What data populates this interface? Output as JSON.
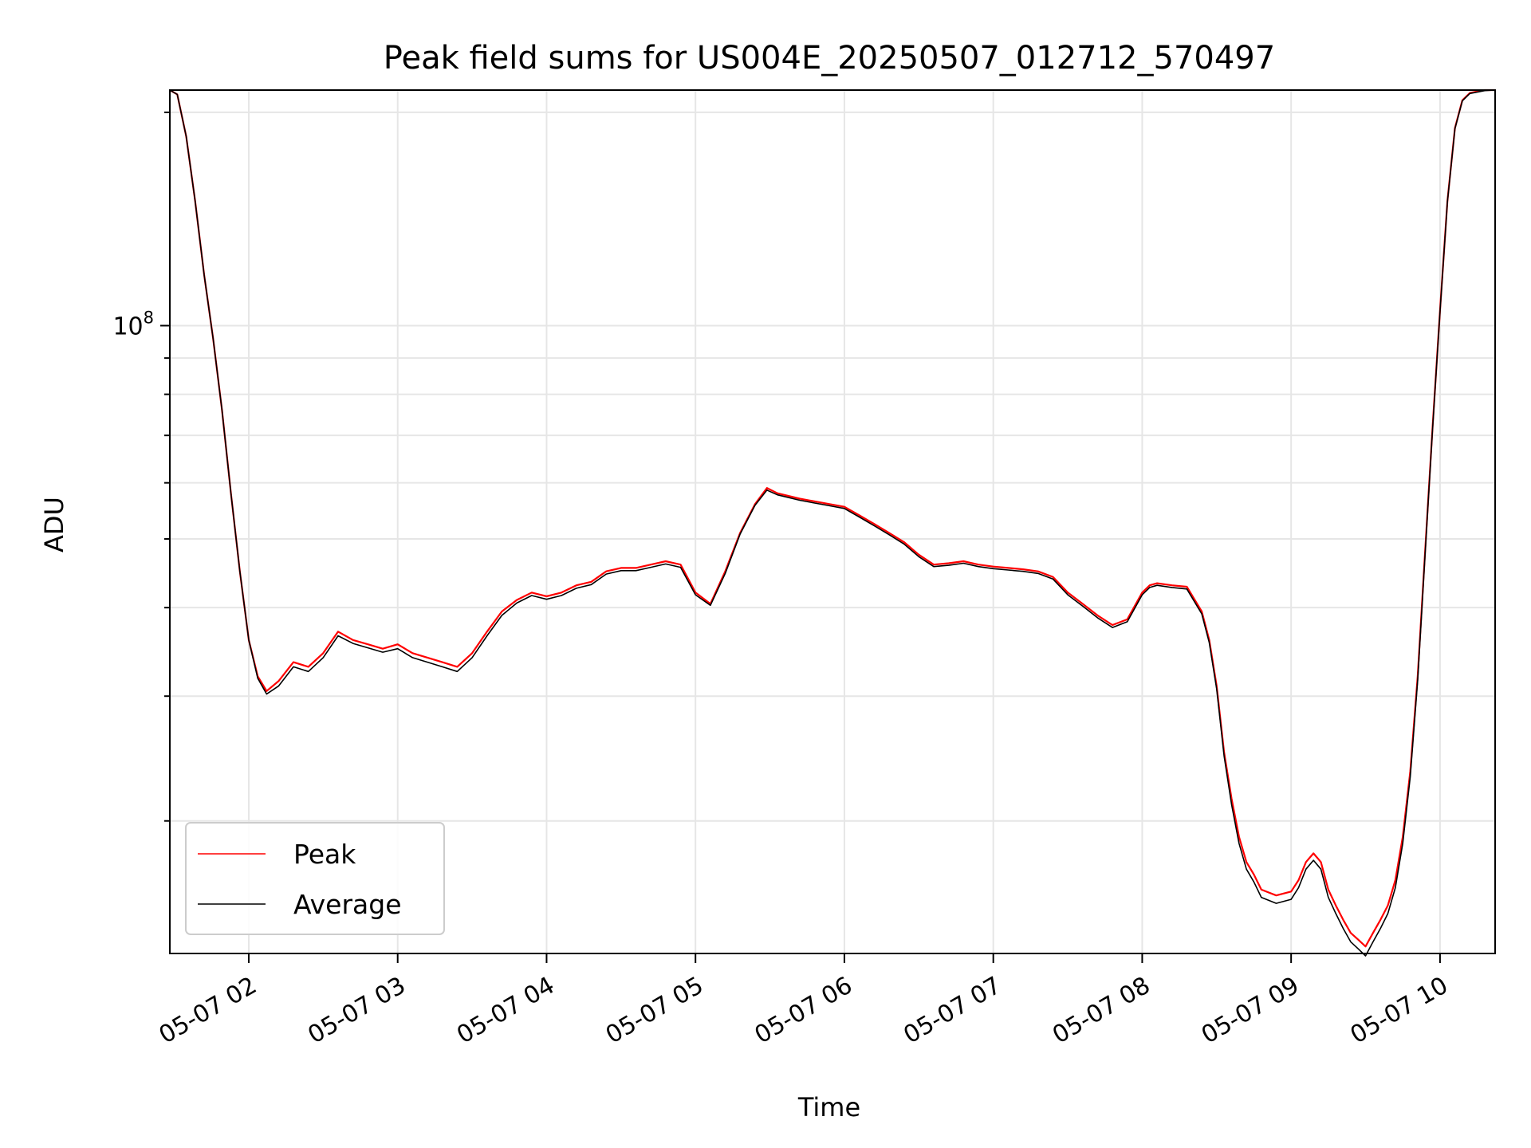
{
  "chart_data": {
    "type": "line",
    "title": "Peak field sums for US004E_20250507_012712_570497",
    "xlabel": "Time",
    "ylabel": "ADU",
    "y_scale": "log",
    "grid": true,
    "legend_position": "lower-left",
    "x_ticks": [
      "05-07 02",
      "05-07 03",
      "05-07 04",
      "05-07 05",
      "05-07 06",
      "05-07 07",
      "05-07 08",
      "05-07 09",
      "05-07 10"
    ],
    "y_major_tick": {
      "value": 100000000,
      "base": "10",
      "exponent": "8"
    },
    "x_range_hours": [
      1.47,
      10.37
    ],
    "y_range": [
      13000000,
      215000000
    ],
    "series": [
      {
        "name": "Peak",
        "color": "#ff0000",
        "x_hours": [
          1.47,
          1.52,
          1.58,
          1.64,
          1.7,
          1.76,
          1.82,
          1.88,
          1.94,
          2.0,
          2.06,
          2.12,
          2.2,
          2.3,
          2.4,
          2.5,
          2.6,
          2.7,
          2.8,
          2.9,
          3.0,
          3.1,
          3.2,
          3.3,
          3.4,
          3.5,
          3.6,
          3.7,
          3.8,
          3.9,
          4.0,
          4.1,
          4.2,
          4.3,
          4.4,
          4.5,
          4.6,
          4.7,
          4.8,
          4.9,
          5.0,
          5.1,
          5.2,
          5.3,
          5.4,
          5.48,
          5.55,
          5.7,
          5.9,
          6.0,
          6.1,
          6.2,
          6.3,
          6.4,
          6.5,
          6.6,
          6.7,
          6.8,
          6.9,
          7.0,
          7.1,
          7.2,
          7.3,
          7.4,
          7.5,
          7.6,
          7.7,
          7.8,
          7.9,
          8.0,
          8.05,
          8.1,
          8.2,
          8.3,
          8.4,
          8.45,
          8.5,
          8.55,
          8.6,
          8.65,
          8.7,
          8.75,
          8.8,
          8.9,
          9.0,
          9.05,
          9.1,
          9.15,
          9.2,
          9.25,
          9.3,
          9.35,
          9.4,
          9.45,
          9.5,
          9.55,
          9.6,
          9.65,
          9.7,
          9.75,
          9.8,
          9.85,
          9.9,
          9.95,
          10.0,
          10.05,
          10.1,
          10.15,
          10.2,
          10.3,
          10.37
        ],
        "values": [
          215000000,
          212000000,
          185000000,
          150000000,
          118000000,
          96000000,
          76000000,
          58000000,
          45000000,
          36000000,
          32000000,
          30500000,
          31500000,
          33500000,
          33000000,
          34500000,
          37000000,
          36000000,
          35500000,
          35000000,
          35500000,
          34500000,
          34000000,
          33500000,
          33000000,
          34500000,
          37000000,
          39500000,
          41000000,
          42000000,
          41500000,
          42000000,
          43000000,
          43500000,
          45000000,
          45500000,
          45500000,
          46000000,
          46500000,
          46000000,
          42000000,
          40500000,
          45000000,
          51000000,
          56000000,
          59000000,
          58000000,
          57000000,
          56000000,
          55500000,
          54000000,
          52500000,
          51000000,
          49500000,
          47500000,
          46000000,
          46200000,
          46500000,
          46000000,
          45700000,
          45500000,
          45300000,
          45000000,
          44200000,
          42000000,
          40500000,
          39000000,
          37800000,
          38500000,
          42000000,
          43000000,
          43300000,
          43000000,
          42800000,
          39500000,
          36000000,
          31000000,
          25000000,
          21500000,
          19000000,
          17500000,
          16800000,
          16000000,
          15700000,
          15900000,
          16500000,
          17500000,
          18000000,
          17500000,
          16000000,
          15200000,
          14500000,
          13900000,
          13600000,
          13300000,
          13900000,
          14500000,
          15200000,
          16500000,
          19000000,
          23500000,
          32000000,
          48000000,
          72000000,
          105000000,
          150000000,
          190000000,
          208000000,
          213000000,
          215000000,
          215000000
        ]
      },
      {
        "name": "Average",
        "color": "#000000",
        "x_hours": [
          1.47,
          1.52,
          1.58,
          1.64,
          1.7,
          1.76,
          1.82,
          1.88,
          1.94,
          2.0,
          2.06,
          2.12,
          2.2,
          2.3,
          2.4,
          2.5,
          2.6,
          2.7,
          2.8,
          2.9,
          3.0,
          3.1,
          3.2,
          3.3,
          3.4,
          3.5,
          3.6,
          3.7,
          3.8,
          3.9,
          4.0,
          4.1,
          4.2,
          4.3,
          4.4,
          4.5,
          4.6,
          4.7,
          4.8,
          4.9,
          5.0,
          5.1,
          5.2,
          5.3,
          5.4,
          5.48,
          5.55,
          5.7,
          5.9,
          6.0,
          6.1,
          6.2,
          6.3,
          6.4,
          6.5,
          6.6,
          6.7,
          6.8,
          6.9,
          7.0,
          7.1,
          7.2,
          7.3,
          7.4,
          7.5,
          7.6,
          7.7,
          7.8,
          7.9,
          8.0,
          8.05,
          8.1,
          8.2,
          8.3,
          8.4,
          8.45,
          8.5,
          8.55,
          8.6,
          8.65,
          8.7,
          8.75,
          8.8,
          8.9,
          9.0,
          9.05,
          9.1,
          9.15,
          9.2,
          9.25,
          9.3,
          9.35,
          9.4,
          9.45,
          9.5,
          9.55,
          9.6,
          9.65,
          9.7,
          9.75,
          9.8,
          9.85,
          9.9,
          9.95,
          10.0,
          10.05,
          10.1,
          10.15,
          10.2,
          10.3,
          10.37
        ],
        "values": [
          215000000,
          212000000,
          185000000,
          150000000,
          118000000,
          96000000,
          76000000,
          58000000,
          45000000,
          36000000,
          31800000,
          30200000,
          31000000,
          33000000,
          32500000,
          34000000,
          36500000,
          35600000,
          35100000,
          34600000,
          35000000,
          34000000,
          33500000,
          33000000,
          32500000,
          34000000,
          36500000,
          39000000,
          40600000,
          41600000,
          41100000,
          41600000,
          42600000,
          43100000,
          44600000,
          45100000,
          45100000,
          45600000,
          46100000,
          45600000,
          41700000,
          40300000,
          44700000,
          50800000,
          55800000,
          58600000,
          57700000,
          56700000,
          55700000,
          55200000,
          53700000,
          52200000,
          50700000,
          49200000,
          47200000,
          45700000,
          45900000,
          46200000,
          45700000,
          45400000,
          45200000,
          45000000,
          44700000,
          43900000,
          41700000,
          40200000,
          38700000,
          37500000,
          38200000,
          41700000,
          42700000,
          43000000,
          42700000,
          42500000,
          39200000,
          35700000,
          30700000,
          24700000,
          21100000,
          18600000,
          17100000,
          16400000,
          15600000,
          15300000,
          15500000,
          16100000,
          17100000,
          17600000,
          17100000,
          15600000,
          14800000,
          14100000,
          13500000,
          13200000,
          12900000,
          13500000,
          14100000,
          14800000,
          16100000,
          18600000,
          23100000,
          31600000,
          47600000,
          71600000,
          104600000,
          149600000,
          189600000,
          207600000,
          212600000,
          214600000,
          215000000
        ]
      }
    ]
  }
}
